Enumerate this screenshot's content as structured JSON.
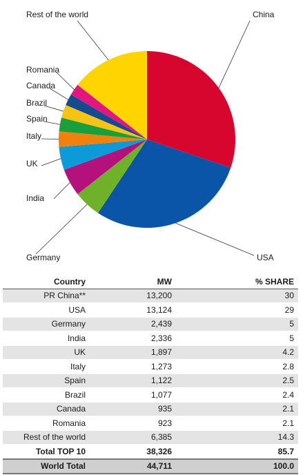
{
  "chart_data": {
    "type": "pie",
    "slices": [
      {
        "label": "China",
        "value": 30,
        "color": "#d7062f"
      },
      {
        "label": "USA",
        "value": 29,
        "color": "#0a55a8"
      },
      {
        "label": "Germany",
        "value": 5,
        "color": "#6fb229"
      },
      {
        "label": "India",
        "value": 5,
        "color": "#b5117c"
      },
      {
        "label": "UK",
        "value": 4.2,
        "color": "#0d9ad8"
      },
      {
        "label": "Italy",
        "value": 2.8,
        "color": "#f0820c"
      },
      {
        "label": "Spain",
        "value": 2.5,
        "color": "#17a03c"
      },
      {
        "label": "Brazil",
        "value": 2.4,
        "color": "#f7c416"
      },
      {
        "label": "Canada",
        "value": 2.1,
        "color": "#134b8e"
      },
      {
        "label": "Romania",
        "value": 2.1,
        "color": "#e3157f"
      },
      {
        "label": "Rest of the world",
        "value": 14.3,
        "color": "#ffd400"
      }
    ]
  },
  "table": {
    "headers": [
      "Country",
      "MW",
      "% SHARE"
    ],
    "rows": [
      {
        "country": "PR China**",
        "mw": "13,200",
        "share": "30"
      },
      {
        "country": "USA",
        "mw": "13,124",
        "share": "29"
      },
      {
        "country": "Germany",
        "mw": "2,439",
        "share": "5"
      },
      {
        "country": "India",
        "mw": "2,336",
        "share": "5"
      },
      {
        "country": "UK",
        "mw": "1,897",
        "share": "4.2"
      },
      {
        "country": "Italy",
        "mw": "1,273",
        "share": "2.8"
      },
      {
        "country": "Spain",
        "mw": "1,122",
        "share": "2.5"
      },
      {
        "country": "Brazil",
        "mw": "1,077",
        "share": "2.4"
      },
      {
        "country": "Canada",
        "mw": "935",
        "share": "2.1"
      },
      {
        "country": "Romania",
        "mw": "923",
        "share": "2.1"
      },
      {
        "country": "Rest of the world",
        "mw": "6,385",
        "share": "14.3"
      }
    ],
    "total_top10": {
      "country": "Total TOP 10",
      "mw": "38,326",
      "share": "85.7"
    },
    "world_total": {
      "country": "World Total",
      "mw": "44,711",
      "share": "100.0"
    }
  }
}
